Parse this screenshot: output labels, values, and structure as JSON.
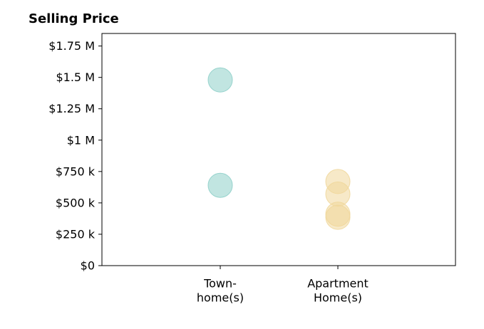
{
  "chart_data": {
    "type": "scatter",
    "title": "Selling Price",
    "xlabel": "",
    "ylabel": "",
    "categories": [
      [
        "Town-",
        "home(s)"
      ],
      [
        "Apartment",
        "Home(s)"
      ]
    ],
    "ylim": [
      0,
      1850000
    ],
    "yticks": [
      {
        "value": 0,
        "label": "$0"
      },
      {
        "value": 250000,
        "label": "$250 k"
      },
      {
        "value": 500000,
        "label": "$500 k"
      },
      {
        "value": 750000,
        "label": "$750 k"
      },
      {
        "value": 1000000,
        "label": "$1 M"
      },
      {
        "value": 1250000,
        "label": "$1.25 M"
      },
      {
        "value": 1500000,
        "label": "$1.5 M"
      },
      {
        "value": 1750000,
        "label": "$1.75 M"
      }
    ],
    "grid": false,
    "series": [
      {
        "category_index": 0,
        "color": "#8ecfc9",
        "values": [
          1480000,
          640000
        ]
      },
      {
        "category_index": 1,
        "color": "#f0d79b",
        "values": [
          670000,
          570000,
          410000,
          385000
        ]
      }
    ]
  }
}
